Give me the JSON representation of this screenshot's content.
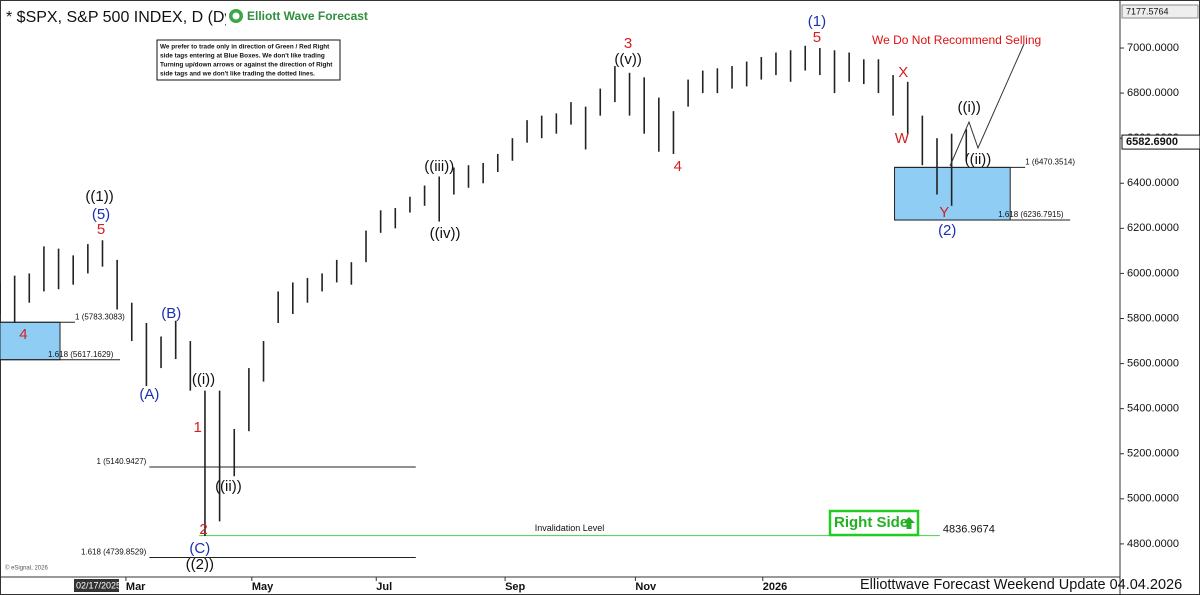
{
  "chart_data": {
    "type": "ohlc",
    "title": "* $SPX, S&P 500 INDEX, D (Dy",
    "logo": "Elliott Wave Forecast",
    "note": [
      "We prefer to trade only in direction of Green / Red Right",
      "side tags entering at Blue Boxes. We don't like trading",
      "Turning up/down arrows or against the direction of Right",
      "side tags and we don't like trading the dotted lines."
    ],
    "warning": "We Do Not Recommend Selling",
    "right_side": "Right Side",
    "footer": "Elliottwave Forecast Weekend  Update 04.04.2026",
    "copyright": "© eSignal, 2026",
    "date_marker": "02/17/2025",
    "color": "#222222",
    "x": [
      0,
      1,
      2,
      3,
      4,
      5,
      6,
      7,
      8,
      9,
      10,
      11,
      12,
      13,
      14,
      15,
      16,
      17,
      18,
      19,
      20,
      21,
      22,
      23,
      24,
      25,
      26,
      27,
      28,
      29,
      30,
      31,
      32,
      33,
      34,
      35,
      36,
      37,
      38,
      39,
      40,
      41,
      42,
      43,
      44,
      45,
      46,
      47,
      48,
      49,
      50,
      51,
      52,
      53,
      54,
      55,
      56,
      57,
      58,
      59,
      60,
      61,
      62,
      63,
      64,
      65,
      66
    ],
    "high": [
      5960,
      5990,
      6000,
      6120,
      6110,
      6080,
      6130,
      6147,
      6060,
      5870,
      5780,
      5720,
      5790,
      5700,
      5480,
      5480,
      5310,
      5580,
      5700,
      5920,
      5960,
      5980,
      6000,
      6060,
      6050,
      6190,
      6280,
      6290,
      6340,
      6390,
      6430,
      6470,
      6480,
      6490,
      6530,
      6600,
      6680,
      6700,
      6710,
      6760,
      6740,
      6820,
      6920,
      6890,
      6870,
      6780,
      6720,
      6860,
      6900,
      6910,
      6920,
      6940,
      6960,
      6980,
      6990,
      7010,
      7000,
      6990,
      6980,
      6950,
      6950,
      6880,
      6850,
      6700,
      6600,
      6620,
      6640
    ],
    "low": [
      5820,
      5780,
      5870,
      5920,
      5930,
      5950,
      6000,
      6030,
      5840,
      5700,
      5500,
      5580,
      5620,
      5480,
      4835,
      4900,
      5100,
      5300,
      5520,
      5780,
      5820,
      5870,
      5920,
      5960,
      5950,
      6050,
      6180,
      6200,
      6270,
      6300,
      6230,
      6350,
      6380,
      6400,
      6450,
      6500,
      6580,
      6600,
      6620,
      6660,
      6550,
      6700,
      6760,
      6700,
      6620,
      6540,
      6530,
      6740,
      6800,
      6800,
      6820,
      6830,
      6860,
      6880,
      6850,
      6900,
      6880,
      6800,
      6850,
      6840,
      6800,
      6700,
      6620,
      6480,
      6350,
      6300,
      6500
    ],
    "xlim": [
      0,
      76.5
    ],
    "xticks": [
      {
        "value": 8.6,
        "label": "Mar"
      },
      {
        "value": 17.2,
        "label": "May"
      },
      {
        "value": 25.7,
        "label": "Jul"
      },
      {
        "value": 34.5,
        "label": "Sep"
      },
      {
        "value": 43.4,
        "label": "Nov"
      },
      {
        "value": 52.1,
        "label": "2026"
      }
    ],
    "ylim": [
      4662,
      7177.5764
    ],
    "yticks": [
      {
        "value": 4800,
        "label": "4800.0000"
      },
      {
        "value": 5000,
        "label": "5000.0000"
      },
      {
        "value": 5200,
        "label": "5200.0000"
      },
      {
        "value": 5400,
        "label": "5400.0000"
      },
      {
        "value": 5600,
        "label": "5600.0000"
      },
      {
        "value": 5800,
        "label": "5800.0000"
      },
      {
        "value": 6000,
        "label": "6000.0000"
      },
      {
        "value": 6200,
        "label": "6200.0000"
      },
      {
        "value": 6400,
        "label": "6400.0000"
      },
      {
        "value": 6600,
        "label": "6600.0000"
      },
      {
        "value": 6800,
        "label": "6800.0000"
      },
      {
        "value": 7000,
        "label": "7000.0000"
      }
    ],
    "ymax_label": 7177.5764,
    "last_price": {
      "value": 6582.69,
      "label": "6582.6900"
    },
    "zones": [
      {
        "x": [
          0,
          4.1
        ],
        "color": "#8fcdf5",
        "levels": [
          {
            "value": 5783.3083,
            "label": "1 (5783.3083)"
          },
          {
            "value": 5617.1629,
            "label": "1.618 (5617.1629)"
          }
        ]
      },
      {
        "x": [
          61.1,
          69
        ],
        "color": "#8fcdf5",
        "levels": [
          {
            "value": 6470.3514,
            "label": "1 (6470.3514)"
          },
          {
            "value": 6236.7915,
            "label": "1.618 (6236.7915)"
          }
        ]
      }
    ],
    "levels": [
      {
        "x": [
          10.2,
          28.4
        ],
        "value": 5140.9427,
        "label": "1 (5140.9427)"
      },
      {
        "x": [
          10.2,
          28.4
        ],
        "value": 4739.8529,
        "label": "1.618 (4739.8529)"
      }
    ],
    "invalidation": {
      "x": [
        13.6,
        64.2
      ],
      "value": 4836.9674,
      "label": "Invalidation Level",
      "color": "#5fd35f"
    },
    "annotations": [
      {
        "text": "4",
        "x": 1.6,
        "y": 5727,
        "color": "#d42020"
      },
      {
        "text": "((1))",
        "x": 6.8,
        "y": 6339,
        "color": "#111111"
      },
      {
        "text": "(5)",
        "x": 6.9,
        "y": 6259,
        "color": "#1a2fb0"
      },
      {
        "text": "5",
        "x": 6.9,
        "y": 6193,
        "color": "#d42020"
      },
      {
        "text": "(B)",
        "x": 11.7,
        "y": 5820,
        "color": "#1a2fb0"
      },
      {
        "text": "(A)",
        "x": 10.2,
        "y": 5461,
        "color": "#1a2fb0"
      },
      {
        "text": "((i))",
        "x": 13.9,
        "y": 5527,
        "color": "#111111"
      },
      {
        "text": "1",
        "x": 13.5,
        "y": 5315,
        "color": "#d42020"
      },
      {
        "text": "((ii))",
        "x": 15.6,
        "y": 5053,
        "color": "#111111"
      },
      {
        "text": "2",
        "x": 13.9,
        "y": 4862,
        "color": "#d42020"
      },
      {
        "text": "(C)",
        "x": 13.65,
        "y": 4778,
        "color": "#1a2fb0"
      },
      {
        "text": "((2))",
        "x": 13.65,
        "y": 4707,
        "color": "#111111"
      },
      {
        "text": "((iii))",
        "x": 30.0,
        "y": 6472,
        "color": "#111111"
      },
      {
        "text": "((iv))",
        "x": 30.4,
        "y": 6175,
        "color": "#111111"
      },
      {
        "text": "3",
        "x": 42.9,
        "y": 7018,
        "color": "#d42020"
      },
      {
        "text": "((v))",
        "x": 42.9,
        "y": 6947,
        "color": "#111111"
      },
      {
        "text": "4",
        "x": 46.3,
        "y": 6472,
        "color": "#d42020"
      },
      {
        "text": "(1)",
        "x": 55.8,
        "y": 7115,
        "color": "#1a2fb0"
      },
      {
        "text": "5",
        "x": 55.8,
        "y": 7044,
        "color": "#d42020"
      },
      {
        "text": "X",
        "x": 61.7,
        "y": 6889,
        "color": "#d42020"
      },
      {
        "text": "W",
        "x": 61.6,
        "y": 6596,
        "color": "#d42020"
      },
      {
        "text": "Y",
        "x": 64.5,
        "y": 6268,
        "color": "#d42020"
      },
      {
        "text": "(2)",
        "x": 64.7,
        "y": 6188,
        "color": "#1a2fb0"
      },
      {
        "text": "((i))",
        "x": 66.2,
        "y": 6734,
        "color": "#111111"
      },
      {
        "text": "((ii))",
        "x": 66.8,
        "y": 6503,
        "color": "#111111"
      }
    ]
  }
}
